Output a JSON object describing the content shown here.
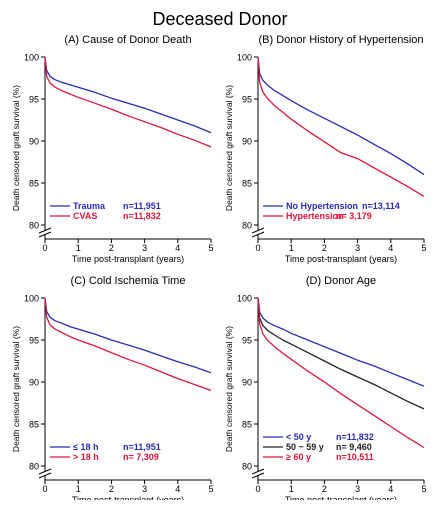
{
  "main_title": "Deceased Donor",
  "chart_data": [
    {
      "type": "line",
      "title": "(A) Cause of Donor Death",
      "xlabel": "Time post-transplant (years)",
      "ylabel": "Death censored graft survival (%)",
      "xlim": [
        0,
        5
      ],
      "ylim": [
        80,
        100
      ],
      "x_ticks": [
        "0",
        "1",
        "2",
        "3",
        "4",
        "5"
      ],
      "y_ticks": [
        "100",
        "95",
        "90",
        "85",
        "80"
      ],
      "axis_break": true,
      "legend_position": "bottom-left",
      "series": [
        {
          "name": "Trauma",
          "count": "n=11,951",
          "color": "#2a2ab8",
          "x": [
            0,
            0.05,
            0.15,
            0.3,
            0.5,
            0.75,
            1,
            1.5,
            2,
            2.5,
            3,
            3.5,
            4,
            4.5,
            5
          ],
          "y": [
            100,
            98.4,
            97.7,
            97.3,
            97.0,
            96.7,
            96.4,
            95.8,
            95.1,
            94.5,
            93.9,
            93.2,
            92.5,
            91.8,
            91.0
          ]
        },
        {
          "name": "CVAS",
          "count": "n=11,832",
          "color": "#e0153c",
          "x": [
            0,
            0.05,
            0.15,
            0.3,
            0.5,
            0.75,
            1,
            1.5,
            2,
            2.5,
            3,
            3.5,
            4,
            4.5,
            5
          ],
          "y": [
            100,
            97.7,
            96.9,
            96.4,
            96.0,
            95.6,
            95.2,
            94.5,
            93.8,
            93.0,
            92.3,
            91.6,
            90.8,
            90.1,
            89.3
          ]
        }
      ]
    },
    {
      "type": "line",
      "title": "(B) Donor History of Hypertension",
      "xlabel": "Time post-transplant (years)",
      "ylabel": "Death censored graft survival (%)",
      "xlim": [
        0,
        5
      ],
      "ylim": [
        80,
        100
      ],
      "x_ticks": [
        "0",
        "1",
        "2",
        "3",
        "4",
        "5"
      ],
      "y_ticks": [
        "100",
        "95",
        "90",
        "85",
        "80"
      ],
      "axis_break": true,
      "legend_position": "bottom-left",
      "series": [
        {
          "name": "No Hypertension",
          "count": "n=13,114",
          "color": "#2a2ab8",
          "x": [
            0,
            0.05,
            0.15,
            0.3,
            0.5,
            0.75,
            1,
            1.5,
            2,
            2.5,
            3,
            3.5,
            4,
            4.5,
            5
          ],
          "y": [
            100,
            98.0,
            97.2,
            96.6,
            96.0,
            95.4,
            94.8,
            93.7,
            92.7,
            91.7,
            90.7,
            89.6,
            88.5,
            87.3,
            86.0
          ]
        },
        {
          "name": "Hypertension",
          "count": "n= 3,179",
          "color": "#e0153c",
          "x": [
            0,
            0.05,
            0.15,
            0.3,
            0.5,
            0.75,
            1,
            1.5,
            2,
            2.5,
            3,
            3.5,
            4,
            4.5,
            5
          ],
          "y": [
            100,
            97.0,
            95.8,
            95.0,
            94.2,
            93.4,
            92.6,
            91.2,
            89.9,
            88.6,
            87.9,
            86.8,
            85.7,
            84.6,
            83.4
          ]
        }
      ]
    },
    {
      "type": "line",
      "title": "(C) Cold Ischemia Time",
      "xlabel": "Time post-transplant (years)",
      "ylabel": "Death censored graft survival (%)",
      "xlim": [
        0,
        5
      ],
      "ylim": [
        80,
        100
      ],
      "x_ticks": [
        "0",
        "1",
        "2",
        "3",
        "4",
        "5"
      ],
      "y_ticks": [
        "100",
        "95",
        "90",
        "85",
        "80"
      ],
      "axis_break": true,
      "legend_position": "bottom-left",
      "series": [
        {
          "name": "≤ 18 h",
          "count": "n=11,951",
          "color": "#2a2ab8",
          "x": [
            0,
            0.05,
            0.15,
            0.3,
            0.5,
            0.75,
            1,
            1.5,
            2,
            2.5,
            3,
            3.5,
            4,
            4.5,
            5
          ],
          "y": [
            100,
            98.4,
            97.7,
            97.3,
            97.0,
            96.6,
            96.3,
            95.7,
            95.0,
            94.4,
            93.8,
            93.1,
            92.4,
            91.8,
            91.1
          ]
        },
        {
          "name": "> 18 h",
          "count": "n= 7,309",
          "color": "#e0153c",
          "x": [
            0,
            0.05,
            0.15,
            0.3,
            0.5,
            0.75,
            1,
            1.5,
            2,
            2.5,
            3,
            3.5,
            4,
            4.5,
            5
          ],
          "y": [
            100,
            97.7,
            96.8,
            96.3,
            95.9,
            95.4,
            95.0,
            94.3,
            93.5,
            92.7,
            92.0,
            91.2,
            90.4,
            89.7,
            89.0
          ]
        }
      ]
    },
    {
      "type": "line",
      "title": "(D) Donor Age",
      "xlabel": "Time post-transplant (years)",
      "ylabel": "Death censored graft survival (%)",
      "xlim": [
        0,
        5
      ],
      "ylim": [
        80,
        100
      ],
      "x_ticks": [
        "0",
        "1",
        "2",
        "3",
        "4",
        "5"
      ],
      "y_ticks": [
        "100",
        "95",
        "90",
        "85",
        "80"
      ],
      "axis_break": true,
      "legend_position": "bottom-left",
      "series": [
        {
          "name": "< 50 y",
          "count": "n=11,832",
          "color": "#2a2ab8",
          "x": [
            0,
            0.05,
            0.15,
            0.3,
            0.5,
            0.75,
            1,
            1.5,
            2,
            2.5,
            3,
            3.5,
            4,
            4.5,
            5
          ],
          "y": [
            100,
            98.3,
            97.6,
            97.1,
            96.7,
            96.3,
            95.8,
            95.0,
            94.2,
            93.4,
            92.6,
            91.9,
            91.1,
            90.3,
            89.5
          ]
        },
        {
          "name": "50 ~ 59 y",
          "count": "n= 9,460",
          "color": "#222222",
          "x": [
            0,
            0.05,
            0.15,
            0.3,
            0.5,
            0.75,
            1,
            1.5,
            2,
            2.5,
            3,
            3.5,
            4,
            4.5,
            5
          ],
          "y": [
            100,
            97.6,
            96.7,
            96.1,
            95.6,
            95.0,
            94.5,
            93.5,
            92.5,
            91.5,
            90.6,
            89.7,
            88.7,
            87.7,
            86.8
          ]
        },
        {
          "name": "≥ 60 y",
          "count": "n=10,511",
          "color": "#e0153c",
          "x": [
            0,
            0.05,
            0.15,
            0.3,
            0.5,
            0.75,
            1,
            1.5,
            2,
            2.5,
            3,
            3.5,
            4,
            4.5,
            5
          ],
          "y": [
            100,
            96.9,
            95.7,
            94.9,
            94.2,
            93.4,
            92.7,
            91.3,
            90.0,
            88.6,
            87.3,
            86.0,
            84.7,
            83.4,
            82.2
          ]
        }
      ]
    }
  ]
}
